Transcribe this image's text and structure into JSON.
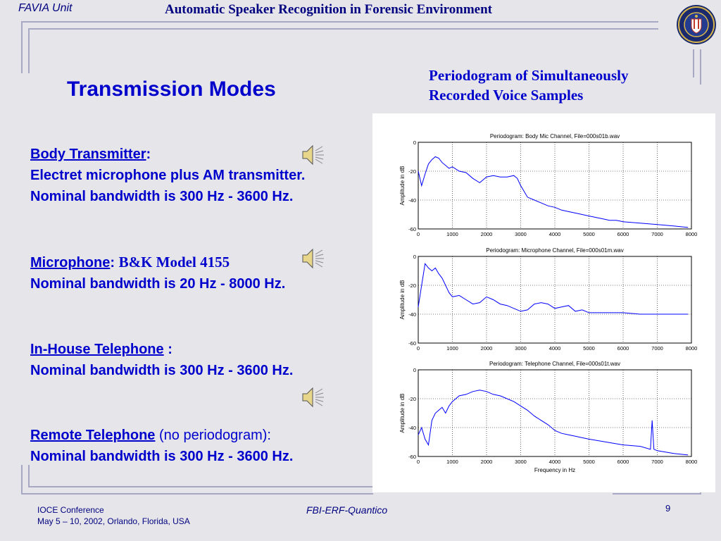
{
  "header": {
    "unit": "FAVIA Unit",
    "title": "Automatic Speaker Recognition in Forensic Environment",
    "seal_text": "FEDERAL BUREAU OF INVESTIGATION"
  },
  "slide": {
    "title": "Transmission Modes",
    "periodogram_heading_1": "Periodogram of Simultaneously",
    "periodogram_heading_2": "Recorded Voice Samples",
    "modes": [
      {
        "name": "Body Transmitter",
        "suffix": ":",
        "line1": "Electret microphone plus AM transmitter.",
        "line2": "Nominal bandwidth is 300 Hz - 3600 Hz."
      },
      {
        "name": "Microphone",
        "suffix": ":",
        "model": "B&K Model 4155",
        "line1": "Nominal bandwidth is 20 Hz - 8000 Hz."
      },
      {
        "name": "In-House Telephone",
        "suffix": " :",
        "line1": "Nominal bandwidth is 300 Hz - 3600 Hz."
      },
      {
        "name": "Remote Telephone",
        "suffix": " (no periodogram):",
        "line1": "Nominal bandwidth is 300 Hz - 3600 Hz."
      }
    ]
  },
  "footer": {
    "conf_line1": "IOCE Conference",
    "conf_line2": "May 5 – 10, 2002,   Orlando, Florida, USA",
    "center": "FBI-ERF-Quantico",
    "page": "9"
  },
  "colors": {
    "text_blue": "#0000cc",
    "navy": "#000080",
    "frame": "#a7a9c4",
    "plot_line": "#0000ff"
  },
  "chart_data": [
    {
      "type": "line",
      "title": "Periodogram:  Body Mic Channel,  File=000s01b.wav",
      "xlabel": "",
      "ylabel": "Amplitude in dB",
      "xlim": [
        0,
        8000
      ],
      "ylim": [
        -60,
        0
      ],
      "xticks": [
        "0",
        "1000",
        "2000",
        "3000",
        "4000",
        "5000",
        "6000",
        "7000",
        "8000"
      ],
      "yticks": [
        "0",
        "-20",
        "-40",
        "-60"
      ],
      "grid": true,
      "x": [
        0,
        100,
        200,
        300,
        400,
        500,
        600,
        700,
        800,
        900,
        1000,
        1200,
        1400,
        1600,
        1800,
        2000,
        2200,
        2400,
        2600,
        2800,
        2900,
        3000,
        3200,
        3400,
        3600,
        3800,
        4000,
        4200,
        4400,
        4600,
        4800,
        5000,
        5200,
        5400,
        5600,
        5800,
        6000,
        6500,
        7000,
        7500,
        7900
      ],
      "values": [
        -20,
        -30,
        -22,
        -15,
        -12,
        -10,
        -11,
        -14,
        -16,
        -18,
        -17,
        -20,
        -21,
        -25,
        -28,
        -24,
        -23,
        -24,
        -24,
        -23,
        -25,
        -30,
        -38,
        -40,
        -42,
        -44,
        -45,
        -47,
        -48,
        -49,
        -50,
        -51,
        -52,
        -53,
        -54,
        -54,
        -55,
        -56,
        -57,
        -58,
        -59
      ]
    },
    {
      "type": "line",
      "title": "Periodogram:  Microphone Channel,  File=000s01m.wav",
      "xlabel": "",
      "ylabel": "Amplitude in dB",
      "xlim": [
        0,
        8000
      ],
      "ylim": [
        -60,
        0
      ],
      "xticks": [
        "0",
        "1000",
        "2000",
        "3000",
        "4000",
        "5000",
        "6000",
        "7000",
        "8000"
      ],
      "yticks": [
        "0",
        "-20",
        "-40",
        "-60"
      ],
      "grid": true,
      "x": [
        0,
        100,
        200,
        300,
        400,
        500,
        600,
        700,
        800,
        900,
        1000,
        1200,
        1400,
        1600,
        1800,
        2000,
        2200,
        2400,
        2600,
        2800,
        3000,
        3200,
        3400,
        3600,
        3800,
        4000,
        4200,
        4400,
        4600,
        4800,
        5000,
        5500,
        6000,
        6500,
        7000,
        7500,
        7900
      ],
      "values": [
        -35,
        -20,
        -5,
        -8,
        -10,
        -8,
        -12,
        -15,
        -20,
        -25,
        -28,
        -27,
        -30,
        -33,
        -32,
        -28,
        -30,
        -33,
        -34,
        -36,
        -38,
        -37,
        -33,
        -32,
        -33,
        -36,
        -35,
        -34,
        -38,
        -37,
        -39,
        -39,
        -39,
        -40,
        -40,
        -40,
        -40
      ]
    },
    {
      "type": "line",
      "title": "Periodogram:  Telephone Channel,  File=000s01t.wav",
      "xlabel": "Frequency in Hz",
      "ylabel": "Amplitude in dB",
      "xlim": [
        0,
        8000
      ],
      "ylim": [
        -60,
        0
      ],
      "xticks": [
        "0",
        "1000",
        "2000",
        "3000",
        "4000",
        "5000",
        "6000",
        "7000",
        "8000"
      ],
      "yticks": [
        "0",
        "-20",
        "-40",
        "-60"
      ],
      "grid": true,
      "x": [
        0,
        100,
        200,
        300,
        400,
        500,
        600,
        700,
        800,
        900,
        1000,
        1200,
        1400,
        1600,
        1800,
        2000,
        2200,
        2400,
        2600,
        2800,
        3000,
        3200,
        3400,
        3600,
        3800,
        4000,
        4200,
        4400,
        4600,
        4800,
        5000,
        5500,
        6000,
        6500,
        6800,
        6850,
        6900,
        7000,
        7500,
        7900
      ],
      "values": [
        -45,
        -40,
        -48,
        -52,
        -35,
        -30,
        -28,
        -26,
        -30,
        -25,
        -22,
        -18,
        -17,
        -15,
        -14,
        -15,
        -17,
        -18,
        -20,
        -22,
        -25,
        -28,
        -32,
        -35,
        -38,
        -42,
        -44,
        -45,
        -46,
        -47,
        -48,
        -50,
        -52,
        -53,
        -55,
        -35,
        -55,
        -56,
        -58,
        -59
      ]
    }
  ]
}
